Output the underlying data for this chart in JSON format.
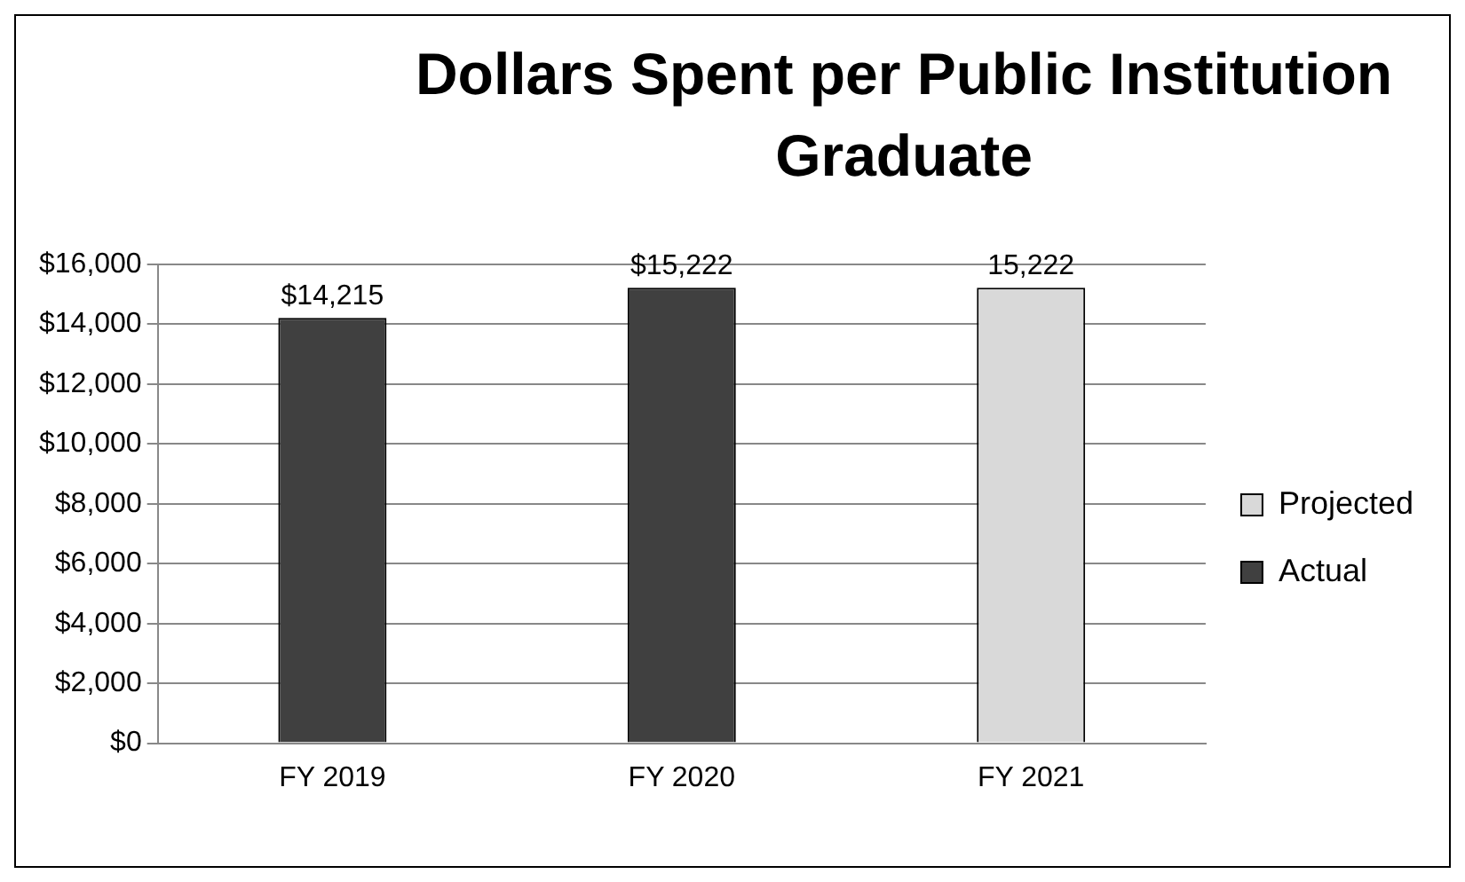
{
  "chart_data": {
    "type": "bar",
    "title": "Dollars Spent per Public Institution Graduate",
    "categories": [
      "FY 2019",
      "FY 2020",
      "FY 2021"
    ],
    "series": [
      {
        "name": "Projected",
        "color": "#d9d9d9",
        "values": [
          null,
          null,
          15222
        ],
        "value_labels": [
          null,
          null,
          "15,222"
        ]
      },
      {
        "name": "Actual",
        "color": "#404040",
        "values": [
          14215,
          15222,
          null
        ],
        "value_labels": [
          "$14,215",
          "$15,222",
          null
        ]
      }
    ],
    "stacked": true,
    "ylim": [
      0,
      16000
    ],
    "yticks": [
      {
        "value": 0,
        "label": "$0"
      },
      {
        "value": 2000,
        "label": "$2,000"
      },
      {
        "value": 4000,
        "label": "$4,000"
      },
      {
        "value": 6000,
        "label": "$6,000"
      },
      {
        "value": 8000,
        "label": "$8,000"
      },
      {
        "value": 10000,
        "label": "$10,000"
      },
      {
        "value": 12000,
        "label": "$12,000"
      },
      {
        "value": 14000,
        "label": "$14,000"
      },
      {
        "value": 16000,
        "label": "$16,000"
      }
    ],
    "grid": "y",
    "legend": "right"
  }
}
